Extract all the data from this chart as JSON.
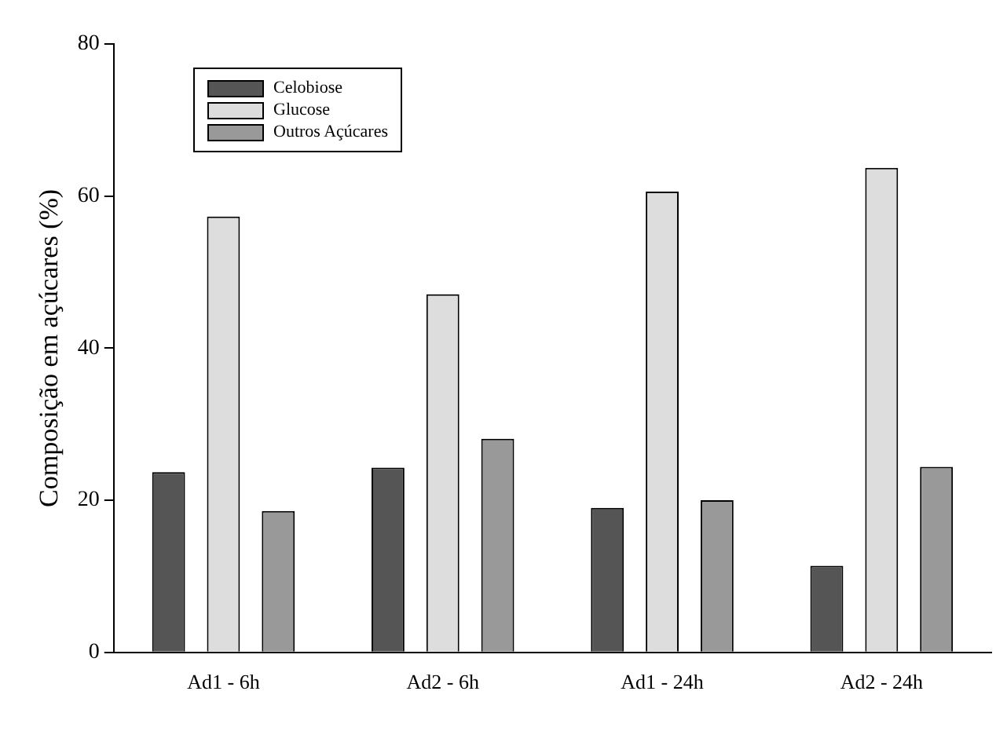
{
  "chart_data": {
    "type": "bar",
    "ylabel": "Composição em açúcares (%)",
    "categories": [
      "Ad1 - 6h",
      "Ad2 - 6h",
      "Ad1 - 24h",
      "Ad2 - 24h"
    ],
    "series": [
      {
        "name": "Celobiose",
        "color": "#555555",
        "values": [
          23.7,
          24.3,
          19.0,
          11.4
        ]
      },
      {
        "name": "Glucose",
        "color": "#dddddd",
        "values": [
          57.3,
          47.1,
          60.6,
          63.7
        ]
      },
      {
        "name": "Outros Açúcares",
        "color": "#999999",
        "values": [
          18.6,
          28.1,
          20.0,
          24.4
        ]
      }
    ],
    "ylim": [
      0,
      80
    ],
    "yticks": [
      0,
      20,
      40,
      60,
      80
    ],
    "grid": false,
    "legend": "top left"
  }
}
